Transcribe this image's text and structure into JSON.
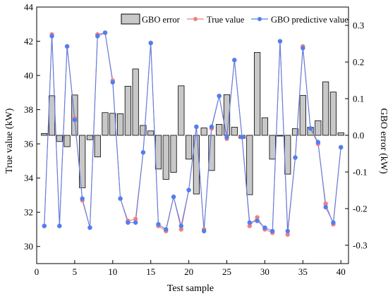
{
  "chart_data": {
    "type": "bar+line",
    "xlabel": "Test sample",
    "ylabel_left": "True value (kW)",
    "ylabel_right": "GBO error (kW)",
    "xlim": [
      0,
      41
    ],
    "ylim_left": [
      29,
      44
    ],
    "ylim_right": [
      -0.35,
      0.35
    ],
    "x_ticks": [
      "0",
      "5",
      "10",
      "15",
      "20",
      "25",
      "30",
      "35",
      "40"
    ],
    "y_left_ticks": [
      "30",
      "32",
      "34",
      "36",
      "38",
      "40",
      "42",
      "44"
    ],
    "y_right_ticks": [
      "-0.3",
      "-0.2",
      "-0.1",
      "0.0",
      "0.1",
      "0.2",
      "0.3"
    ],
    "legend": {
      "placement": "top-right",
      "error_label": "GBO error",
      "true_label": "True value",
      "pred_label": "GBO predictive value"
    },
    "colors": {
      "bar_fill": "#c8c8c8",
      "bar_edge": "#000000",
      "true_line": "#f08080",
      "true_marker": "#f08080",
      "pred_line": "#5b7fe8",
      "pred_marker": "#4f7ff0"
    },
    "x": [
      1,
      2,
      3,
      4,
      5,
      6,
      7,
      8,
      9,
      10,
      11,
      12,
      13,
      14,
      15,
      16,
      17,
      18,
      19,
      20,
      21,
      22,
      23,
      24,
      25,
      26,
      27,
      28,
      29,
      30,
      31,
      32,
      33,
      34,
      35,
      36,
      37,
      38,
      39,
      40
    ],
    "series": [
      {
        "name": "True value",
        "values": [
          31.2,
          42.4,
          31.2,
          41.7,
          37.5,
          32.7,
          31.1,
          42.4,
          42.5,
          39.7,
          32.8,
          31.5,
          31.6,
          35.5,
          41.9,
          31.2,
          30.9,
          32.9,
          31.0,
          33.3,
          37.0,
          31.0,
          36.9,
          38.8,
          36.3,
          40.9,
          36.4,
          31.2,
          31.7,
          31.0,
          30.8,
          42.0,
          30.7,
          35.2,
          41.7,
          36.9,
          36.0,
          32.5,
          31.3,
          35.8
        ]
      },
      {
        "name": "GBO predictive value",
        "values": [
          31.2,
          42.3,
          31.2,
          41.7,
          37.4,
          32.8,
          31.1,
          42.3,
          42.5,
          39.6,
          32.8,
          31.4,
          31.4,
          35.5,
          41.9,
          31.3,
          31.0,
          32.9,
          31.2,
          33.3,
          37.0,
          30.9,
          37.0,
          38.8,
          36.4,
          40.9,
          36.4,
          31.4,
          31.5,
          31.1,
          30.9,
          42.0,
          30.9,
          35.2,
          41.6,
          36.9,
          36.1,
          32.3,
          31.4,
          35.8
        ]
      },
      {
        "name": "GBO error",
        "values": [
          0.005,
          0.108,
          -0.017,
          -0.031,
          0.11,
          -0.143,
          -0.012,
          -0.059,
          0.062,
          0.06,
          0.059,
          0.134,
          0.181,
          0.027,
          0.012,
          -0.092,
          -0.12,
          -0.101,
          0.135,
          -0.065,
          -0.16,
          0.02,
          -0.096,
          0.03,
          0.111,
          0.022,
          -0.008,
          -0.162,
          0.226,
          0.048,
          -0.065,
          0.0,
          -0.106,
          0.018,
          0.109,
          0.022,
          0.04,
          0.146,
          0.118,
          0.007
        ]
      }
    ]
  }
}
